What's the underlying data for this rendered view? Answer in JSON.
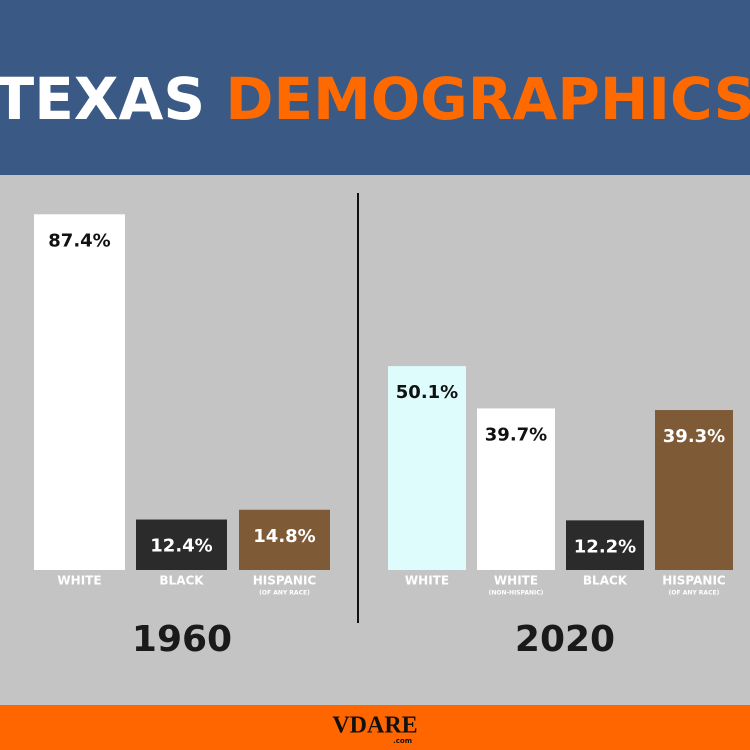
{
  "header": {
    "title_parts": [
      "TEXAS",
      "DEMOGRAPHICS"
    ]
  },
  "chart_data": [
    {
      "type": "bar",
      "title": "1960",
      "categories": [
        "WHITE",
        "BLACK",
        "HISPANIC"
      ],
      "sublabels": [
        null,
        null,
        "(OF ANY RACE)"
      ],
      "values": [
        87.4,
        12.4,
        14.8
      ],
      "value_labels": [
        "87.4%",
        "12.4%",
        "14.8%"
      ],
      "colors": [
        "#ffffff",
        "#2b2b2b",
        "#7f5a37"
      ]
    },
    {
      "type": "bar",
      "title": "2020",
      "categories": [
        "WHITE",
        "WHITE",
        "BLACK",
        "HISPANIC"
      ],
      "sublabels": [
        null,
        "(NON-HISPANIC)",
        null,
        "(OF ANY RACE)"
      ],
      "values": [
        50.1,
        39.7,
        12.2,
        39.3
      ],
      "value_labels": [
        "50.1%",
        "39.7%",
        "12.2%",
        "39.3%"
      ],
      "colors": [
        "#dffcfc",
        "#ffffff",
        "#2b2b2b",
        "#7f5a37"
      ]
    }
  ],
  "footer": {
    "logo": "VDARE",
    "logo_suffix": ".com"
  }
}
